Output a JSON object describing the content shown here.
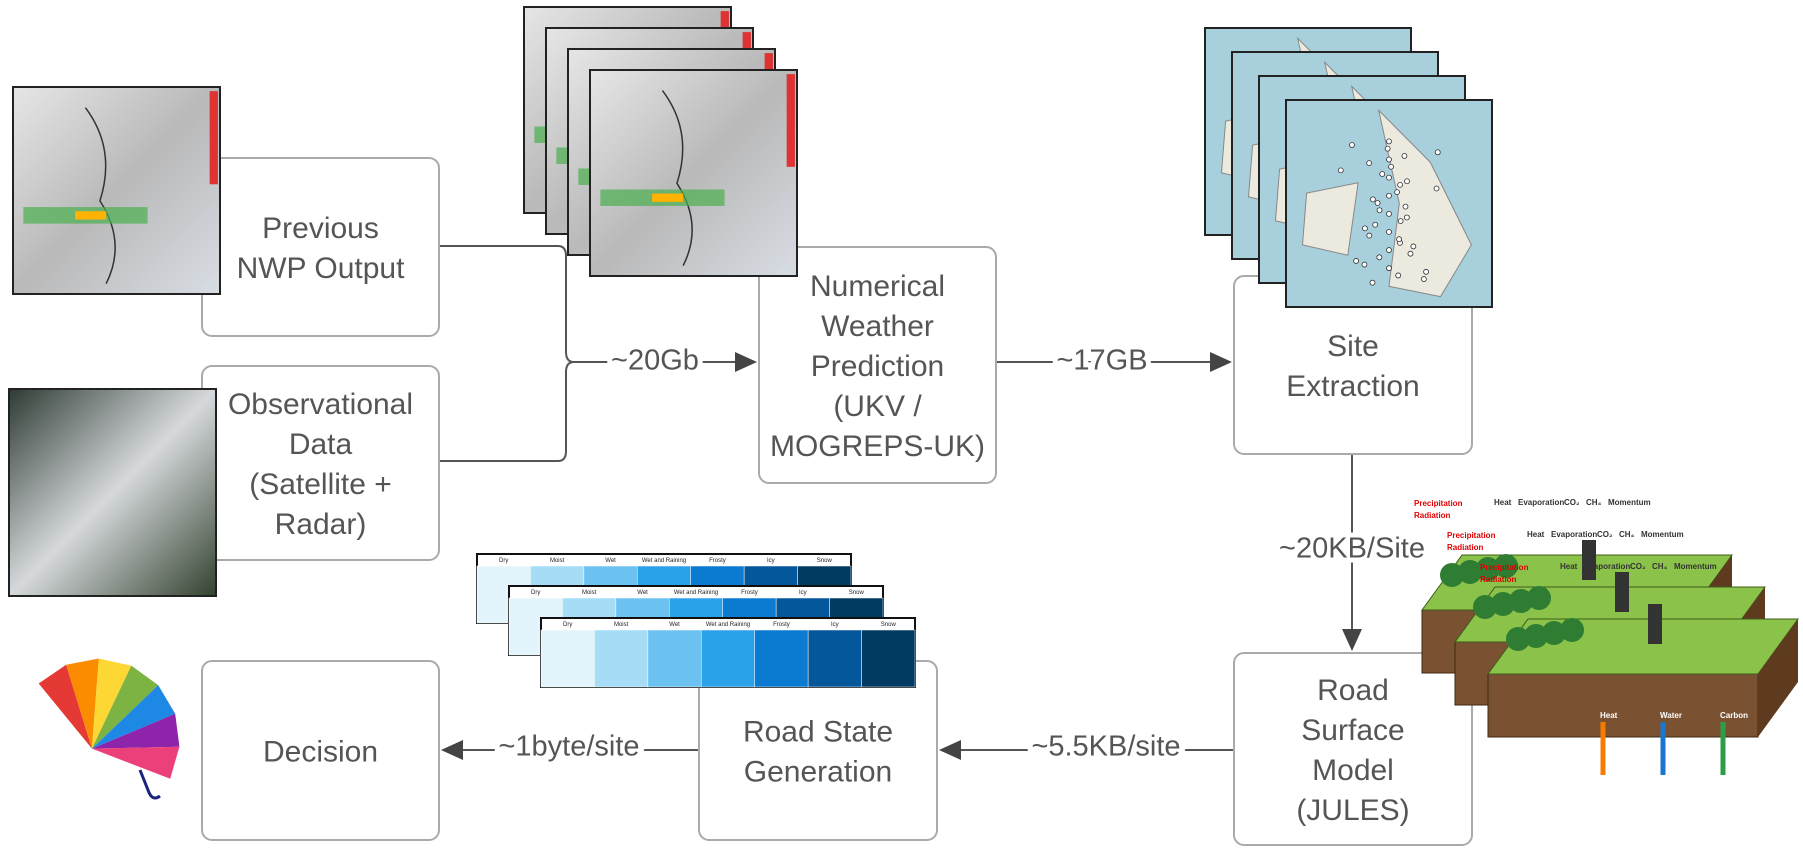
{
  "nodes": [
    {
      "lines": [
        "Previous",
        "NWP Output"
      ]
    },
    {
      "lines": [
        "Observational",
        "Data",
        "(Satellite +",
        "Radar)"
      ]
    },
    {
      "lines": [
        "Numerical",
        "Weather",
        "Prediction",
        "(UKV /",
        "MOGREPS-UK)"
      ]
    },
    {
      "lines": [
        "Site",
        "Extraction"
      ]
    },
    {
      "lines": [
        "Road",
        "Surface",
        "Model",
        "(JULES)"
      ]
    },
    {
      "lines": [
        "Road State",
        "Generation"
      ]
    },
    {
      "lines": [
        "Decision"
      ]
    }
  ],
  "edges": [
    {
      "label": "~20Gb"
    },
    {
      "label": "~17GB"
    },
    {
      "label": "~20KB/Site"
    },
    {
      "label": "~5.5KB/site"
    },
    {
      "label": "~1byte/site"
    }
  ],
  "road_state_legend": [
    "Dry",
    "Moist",
    "Wet",
    "Wet and Raining",
    "Frosty",
    "Icy",
    "Snow"
  ],
  "land_surface": {
    "inputs": [
      "Precipitation",
      "Radiation"
    ],
    "fluxes": [
      "Heat",
      "Evaporation",
      "CO₂",
      "CH₄",
      "Momentum"
    ],
    "stores": [
      "Heat",
      "Water",
      "Carbon"
    ]
  }
}
